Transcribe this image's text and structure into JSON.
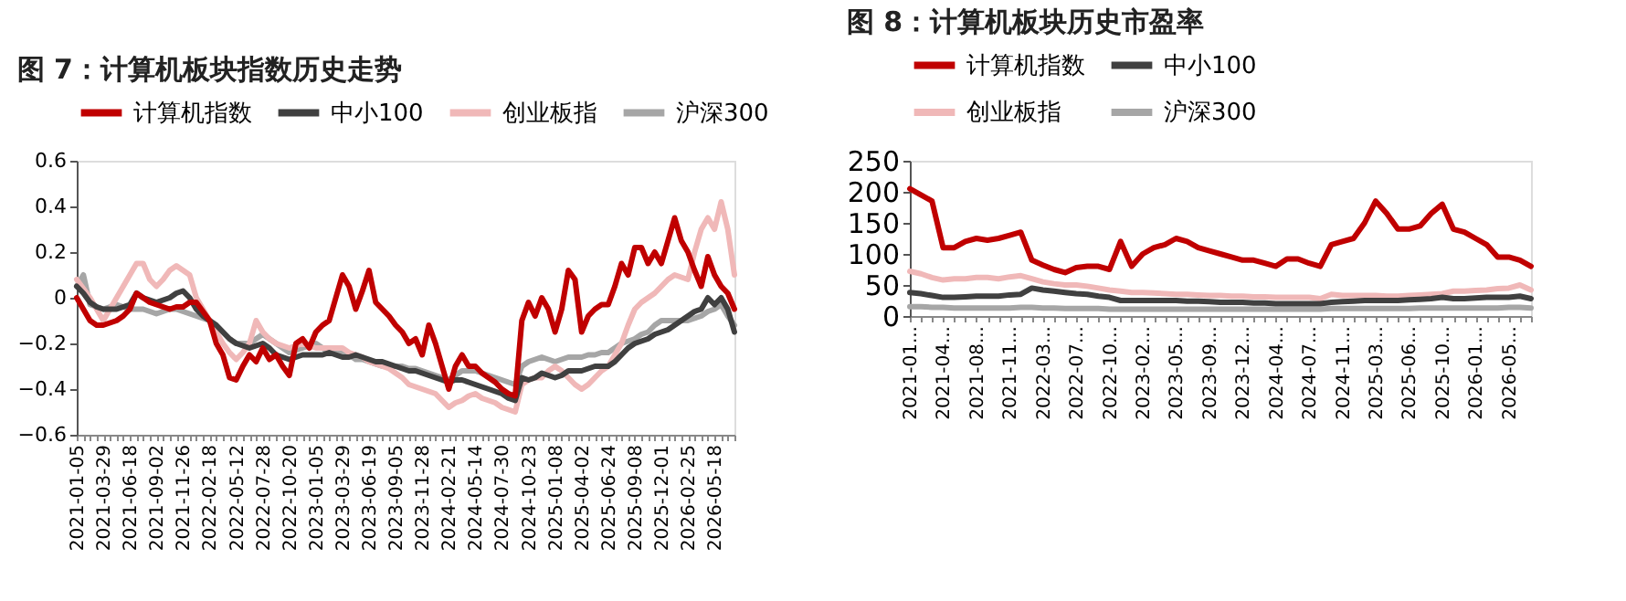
{
  "chart_data": [
    {
      "type": "line",
      "title": "图 7：计算机板块指数历史走势",
      "categories": [
        "2021-01-05",
        null,
        null,
        null,
        "2021-03-29",
        null,
        null,
        null,
        "2021-06-18",
        null,
        null,
        null,
        "2021-09-02",
        null,
        null,
        null,
        "2021-11-26",
        null,
        null,
        null,
        "2022-02-18",
        null,
        null,
        null,
        "2022-05-12",
        null,
        null,
        null,
        "2022-07-28",
        null,
        null,
        null,
        "2022-10-20",
        null,
        null,
        null,
        "2023-01-05",
        null,
        null,
        null,
        "2023-03-29",
        null,
        null,
        null,
        "2023-06-19",
        null,
        null,
        null,
        "2023-09-05",
        null,
        null,
        null,
        "2023-11-28",
        null,
        null,
        null,
        "2024-02-21",
        null,
        null,
        null,
        "2024-05-14",
        null,
        null,
        null,
        "2024-07-30",
        null,
        null,
        null,
        "2024-10-23",
        null,
        null,
        null,
        "2025-01-08",
        null,
        null,
        null,
        "2025-04-02",
        null,
        null,
        null,
        "2025-06-24",
        null,
        null,
        null,
        "2025-09-08",
        null,
        null,
        null,
        "2025-12-01",
        null,
        null,
        null,
        "2026-02-25",
        null,
        null,
        null,
        "2026-05-18",
        null,
        null,
        null
      ],
      "series": [
        {
          "name": "计算机指数",
          "color": "#c00000",
          "values": [
            0.0,
            -0.05,
            -0.1,
            -0.12,
            -0.12,
            -0.11,
            -0.1,
            -0.08,
            -0.05,
            0.02,
            0.0,
            -0.02,
            -0.03,
            -0.04,
            -0.05,
            -0.04,
            -0.04,
            -0.02,
            -0.02,
            -0.06,
            -0.1,
            -0.2,
            -0.25,
            -0.35,
            -0.36,
            -0.3,
            -0.25,
            -0.28,
            -0.22,
            -0.27,
            -0.25,
            -0.3,
            -0.34,
            -0.2,
            -0.18,
            -0.22,
            -0.15,
            -0.12,
            -0.1,
            0.0,
            0.1,
            0.05,
            -0.05,
            0.03,
            0.12,
            -0.02,
            -0.05,
            -0.08,
            -0.12,
            -0.15,
            -0.2,
            -0.18,
            -0.25,
            -0.12,
            -0.2,
            -0.3,
            -0.4,
            -0.3,
            -0.25,
            -0.3,
            -0.3,
            -0.33,
            -0.35,
            -0.37,
            -0.4,
            -0.42,
            -0.43,
            -0.1,
            -0.02,
            -0.08,
            0.0,
            -0.05,
            -0.15,
            -0.05,
            0.12,
            0.08,
            -0.15,
            -0.08,
            -0.05,
            -0.03,
            -0.03,
            0.05,
            0.15,
            0.1,
            0.22,
            0.22,
            0.15,
            0.2,
            0.15,
            0.25,
            0.35,
            0.25,
            0.2,
            0.12,
            0.05,
            0.18,
            0.1,
            0.05,
            0.02,
            -0.05
          ]
        },
        {
          "name": "中小100",
          "color": "#404040",
          "values": [
            0.05,
            0.02,
            -0.02,
            -0.04,
            -0.05,
            -0.05,
            -0.05,
            -0.04,
            -0.03,
            0.02,
            0.0,
            -0.01,
            -0.02,
            -0.01,
            0.0,
            0.02,
            0.03,
            0.0,
            -0.05,
            -0.08,
            -0.1,
            -0.12,
            -0.15,
            -0.18,
            -0.2,
            -0.21,
            -0.22,
            -0.21,
            -0.2,
            -0.22,
            -0.25,
            -0.26,
            -0.27,
            -0.26,
            -0.25,
            -0.25,
            -0.25,
            -0.25,
            -0.24,
            -0.25,
            -0.26,
            -0.26,
            -0.25,
            -0.26,
            -0.27,
            -0.28,
            -0.28,
            -0.29,
            -0.3,
            -0.31,
            -0.32,
            -0.32,
            -0.33,
            -0.34,
            -0.35,
            -0.36,
            -0.37,
            -0.36,
            -0.36,
            -0.37,
            -0.38,
            -0.39,
            -0.4,
            -0.41,
            -0.42,
            -0.44,
            -0.45,
            -0.35,
            -0.36,
            -0.35,
            -0.33,
            -0.34,
            -0.35,
            -0.34,
            -0.32,
            -0.32,
            -0.32,
            -0.31,
            -0.3,
            -0.3,
            -0.3,
            -0.28,
            -0.25,
            -0.22,
            -0.2,
            -0.19,
            -0.18,
            -0.16,
            -0.15,
            -0.14,
            -0.12,
            -0.1,
            -0.08,
            -0.06,
            -0.05,
            0.0,
            -0.03,
            0.0,
            -0.05,
            -0.15
          ]
        },
        {
          "name": "创业板指",
          "color": "#f0b8b8",
          "values": [
            0.08,
            0.04,
            0.0,
            -0.05,
            -0.1,
            -0.05,
            0.0,
            0.05,
            0.1,
            0.15,
            0.15,
            0.08,
            0.05,
            0.08,
            0.12,
            0.14,
            0.12,
            0.1,
            0.0,
            -0.05,
            -0.1,
            -0.15,
            -0.2,
            -0.24,
            -0.27,
            -0.24,
            -0.2,
            -0.1,
            -0.15,
            -0.18,
            -0.2,
            -0.21,
            -0.22,
            -0.21,
            -0.2,
            -0.21,
            -0.22,
            -0.22,
            -0.22,
            -0.22,
            -0.22,
            -0.24,
            -0.25,
            -0.26,
            -0.28,
            -0.29,
            -0.3,
            -0.31,
            -0.33,
            -0.35,
            -0.38,
            -0.39,
            -0.4,
            -0.41,
            -0.42,
            -0.45,
            -0.48,
            -0.46,
            -0.45,
            -0.43,
            -0.42,
            -0.44,
            -0.45,
            -0.46,
            -0.48,
            -0.49,
            -0.5,
            -0.38,
            -0.36,
            -0.35,
            -0.35,
            -0.32,
            -0.3,
            -0.32,
            -0.35,
            -0.38,
            -0.4,
            -0.38,
            -0.35,
            -0.32,
            -0.3,
            -0.25,
            -0.2,
            -0.12,
            -0.05,
            -0.02,
            0.0,
            0.02,
            0.05,
            0.08,
            0.1,
            0.09,
            0.08,
            0.2,
            0.3,
            0.35,
            0.3,
            0.42,
            0.3,
            0.1
          ]
        },
        {
          "name": "沪深300",
          "color": "#a6a6a6",
          "values": [
            0.05,
            0.1,
            -0.03,
            -0.04,
            -0.05,
            -0.04,
            -0.03,
            -0.04,
            -0.05,
            -0.05,
            -0.05,
            -0.06,
            -0.07,
            -0.06,
            -0.05,
            -0.05,
            -0.06,
            -0.07,
            -0.08,
            -0.09,
            -0.1,
            -0.12,
            -0.15,
            -0.18,
            -0.2,
            -0.2,
            -0.2,
            -0.18,
            -0.16,
            -0.18,
            -0.2,
            -0.22,
            -0.24,
            -0.23,
            -0.22,
            -0.21,
            -0.2,
            -0.22,
            -0.24,
            -0.24,
            -0.24,
            -0.25,
            -0.27,
            -0.27,
            -0.28,
            -0.29,
            -0.3,
            -0.3,
            -0.3,
            -0.3,
            -0.31,
            -0.31,
            -0.32,
            -0.33,
            -0.34,
            -0.35,
            -0.36,
            -0.34,
            -0.32,
            -0.32,
            -0.32,
            -0.33,
            -0.34,
            -0.35,
            -0.36,
            -0.37,
            -0.38,
            -0.3,
            -0.28,
            -0.27,
            -0.26,
            -0.27,
            -0.28,
            -0.27,
            -0.26,
            -0.26,
            -0.26,
            -0.25,
            -0.25,
            -0.24,
            -0.24,
            -0.22,
            -0.2,
            -0.19,
            -0.18,
            -0.16,
            -0.15,
            -0.12,
            -0.1,
            -0.1,
            -0.1,
            -0.1,
            -0.1,
            -0.09,
            -0.08,
            -0.06,
            -0.05,
            -0.03,
            -0.08,
            -0.12
          ]
        }
      ],
      "ylim": [
        -0.6,
        0.6
      ],
      "yticks": [
        -0.6,
        -0.4,
        -0.2,
        0,
        0.2,
        0.4,
        0.6
      ],
      "legend": "top",
      "grid": false
    },
    {
      "type": "line",
      "title": "图 8：计算机板块历史市盈率",
      "categories": [
        "2021-01...",
        null,
        null,
        "2021-04...",
        null,
        null,
        "2021-08...",
        null,
        null,
        "2021-11...",
        null,
        null,
        "2022-03...",
        null,
        null,
        "2022-07...",
        null,
        null,
        "2022-10...",
        null,
        null,
        "2023-02...",
        null,
        null,
        "2023-05...",
        null,
        null,
        "2023-09...",
        null,
        null,
        "2023-12...",
        null,
        null,
        "2024-04...",
        null,
        null,
        "2024-07...",
        null,
        null,
        "2024-11...",
        null,
        null,
        "2025-03...",
        null,
        null,
        "2025-06...",
        null,
        null,
        "2025-10...",
        null,
        null,
        "2026-01...",
        null,
        null,
        "2026-05...",
        null,
        null
      ],
      "series": [
        {
          "name": "计算机指数",
          "color": "#c00000",
          "values": [
            205,
            195,
            185,
            110,
            110,
            120,
            125,
            122,
            125,
            130,
            135,
            90,
            82,
            75,
            70,
            78,
            80,
            80,
            75,
            120,
            80,
            100,
            110,
            115,
            125,
            120,
            110,
            105,
            100,
            95,
            90,
            90,
            85,
            80,
            92,
            92,
            85,
            80,
            115,
            120,
            125,
            150,
            185,
            165,
            140,
            140,
            145,
            165,
            180,
            140,
            135,
            125,
            115,
            95,
            95,
            90,
            80
          ]
        },
        {
          "name": "中小100",
          "color": "#404040",
          "values": [
            38,
            36,
            33,
            30,
            30,
            31,
            32,
            32,
            32,
            34,
            35,
            45,
            42,
            40,
            38,
            36,
            35,
            32,
            30,
            25,
            25,
            25,
            25,
            25,
            25,
            24,
            24,
            23,
            22,
            22,
            22,
            21,
            21,
            20,
            20,
            20,
            20,
            20,
            22,
            23,
            24,
            25,
            25,
            25,
            25,
            26,
            27,
            28,
            30,
            28,
            28,
            29,
            30,
            30,
            30,
            32,
            28
          ]
        },
        {
          "name": "创业板指",
          "color": "#f0b8b8",
          "values": [
            72,
            68,
            62,
            58,
            60,
            60,
            62,
            62,
            60,
            63,
            65,
            60,
            55,
            52,
            50,
            50,
            48,
            45,
            42,
            40,
            38,
            38,
            37,
            36,
            35,
            35,
            34,
            33,
            33,
            32,
            32,
            31,
            31,
            30,
            30,
            30,
            30,
            28,
            35,
            33,
            33,
            33,
            33,
            32,
            32,
            33,
            34,
            35,
            36,
            40,
            40,
            41,
            42,
            44,
            45,
            50,
            42
          ]
        },
        {
          "name": "沪深300",
          "color": "#a6a6a6",
          "values": [
            15,
            15,
            14,
            14,
            13,
            13,
            13,
            13,
            13,
            13,
            14,
            14,
            13,
            13,
            12,
            12,
            12,
            12,
            11,
            11,
            11,
            11,
            11,
            11,
            11,
            11,
            11,
            11,
            11,
            11,
            11,
            11,
            11,
            11,
            11,
            11,
            11,
            11,
            12,
            12,
            12,
            12,
            12,
            12,
            12,
            12,
            13,
            13,
            13,
            13,
            13,
            13,
            13,
            13,
            14,
            14,
            13
          ]
        }
      ],
      "ylim": [
        0,
        250
      ],
      "yticks": [
        0,
        50,
        100,
        150,
        200,
        250
      ],
      "legend": "top",
      "grid": false
    }
  ]
}
